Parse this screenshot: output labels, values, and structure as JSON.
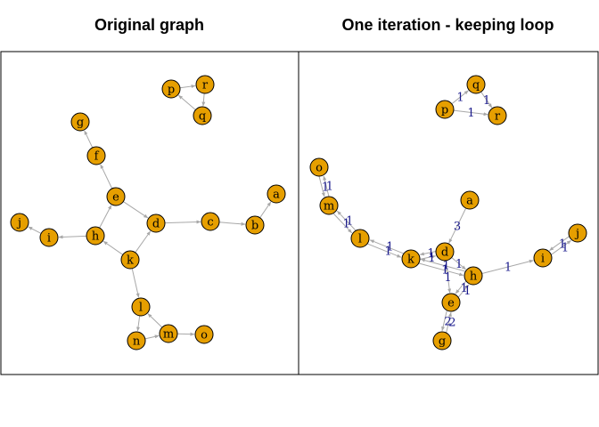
{
  "titles": {
    "left": "Original graph",
    "right": "One iteration - keeping loop"
  },
  "colors": {
    "node_fill": "#E69F00",
    "node_stroke": "#000000",
    "edge": "#a8a8a8",
    "edge_label": "#1a1a8c",
    "frame": "#000000"
  },
  "graphs": {
    "original": {
      "nodes": [
        "a",
        "b",
        "c",
        "d",
        "e",
        "f",
        "g",
        "h",
        "i",
        "j",
        "k",
        "l",
        "m",
        "n",
        "o",
        "p",
        "q",
        "r"
      ],
      "edges": [
        [
          "b",
          "a"
        ],
        [
          "c",
          "b"
        ],
        [
          "d",
          "c"
        ],
        [
          "e",
          "d"
        ],
        [
          "k",
          "d"
        ],
        [
          "e",
          "f"
        ],
        [
          "f",
          "g"
        ],
        [
          "h",
          "e"
        ],
        [
          "k",
          "h"
        ],
        [
          "h",
          "i"
        ],
        [
          "i",
          "j"
        ],
        [
          "k",
          "l"
        ],
        [
          "l",
          "n"
        ],
        [
          "n",
          "m"
        ],
        [
          "m",
          "l"
        ],
        [
          "m",
          "o"
        ],
        [
          "q",
          "p"
        ],
        [
          "p",
          "r"
        ],
        [
          "r",
          "q"
        ]
      ]
    },
    "iteration": {
      "nodes": [
        "a",
        "d",
        "e",
        "g",
        "h",
        "i",
        "j",
        "k",
        "l",
        "m",
        "o",
        "p",
        "q",
        "r"
      ],
      "edges": [
        {
          "from": "p",
          "to": "q",
          "label": "1"
        },
        {
          "from": "q",
          "to": "r",
          "label": "1"
        },
        {
          "from": "p",
          "to": "r",
          "label": "1"
        },
        {
          "from": "o",
          "to": "m",
          "label": "1"
        },
        {
          "from": "m",
          "to": "o",
          "label": "1"
        },
        {
          "from": "m",
          "to": "l",
          "label": "1"
        },
        {
          "from": "l",
          "to": "m",
          "label": "1"
        },
        {
          "from": "l",
          "to": "k",
          "label": "1"
        },
        {
          "from": "k",
          "to": "l",
          "label": "1"
        },
        {
          "from": "a",
          "to": "d",
          "label": "3"
        },
        {
          "from": "k",
          "to": "d",
          "label": "1"
        },
        {
          "from": "d",
          "to": "k",
          "label": "1"
        },
        {
          "from": "k",
          "to": "h",
          "label": "1"
        },
        {
          "from": "h",
          "to": "k",
          "label": "1"
        },
        {
          "from": "d",
          "to": "h",
          "label": "1"
        },
        {
          "from": "d",
          "to": "e",
          "label": "1"
        },
        {
          "from": "e",
          "to": "h",
          "label": "1"
        },
        {
          "from": "h",
          "to": "e",
          "label": "1"
        },
        {
          "from": "h",
          "to": "i",
          "label": "1"
        },
        {
          "from": "i",
          "to": "j",
          "label": "1"
        },
        {
          "from": "j",
          "to": "i",
          "label": "1"
        },
        {
          "from": "e",
          "to": "g",
          "label": "2"
        },
        {
          "from": "g",
          "to": "e",
          "label": "2"
        }
      ]
    }
  }
}
